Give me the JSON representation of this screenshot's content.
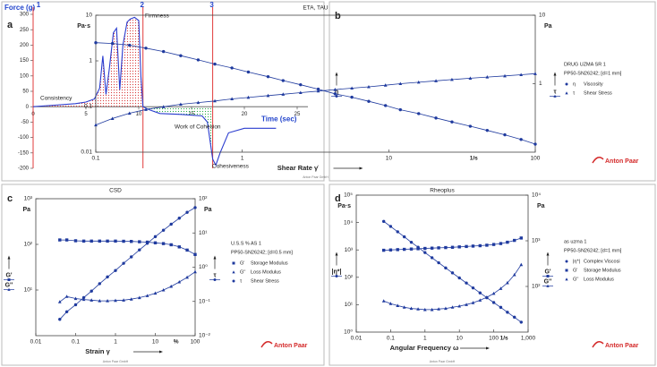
{
  "chart_data": [
    {
      "type": "area",
      "panel": "a",
      "ylabel": "Force (g)",
      "xlabel": "Time (sec)",
      "x": [
        0,
        2,
        4,
        5,
        5.8,
        6.3,
        6.6,
        6.9,
        7.2,
        7.6,
        7.9,
        8.2,
        8.5,
        8.9,
        9.2,
        9.6,
        10,
        10.2,
        10.4,
        11,
        12,
        14,
        16,
        16.5,
        17,
        17.3,
        17.7,
        18.5,
        20,
        23
      ],
      "series": [
        {
          "color": "#2a3ccf",
          "values": [
            0,
            5,
            10,
            15,
            25,
            60,
            165,
            40,
            120,
            240,
            255,
            55,
            200,
            275,
            285,
            290,
            280,
            100,
            0,
            -10,
            -22,
            -25,
            -30,
            -50,
            -170,
            -190,
            -150,
            -85,
            -70,
            -70
          ]
        }
      ],
      "xlim": [
        0,
        25
      ],
      "xticks": [
        0,
        5,
        10,
        15,
        20,
        25
      ],
      "ylim": [
        -200,
        300
      ],
      "yticks": [
        -200,
        -150,
        -100,
        -50,
        0,
        50,
        100,
        150,
        200,
        250,
        300
      ],
      "markers": [
        {
          "x": 0,
          "label": "1"
        },
        {
          "x": 10.4,
          "label": "2"
        },
        {
          "x": 17,
          "label": "3"
        }
      ],
      "marker_color": "#e23b3b",
      "shade_colors": [
        "#d83a3a",
        "#22a844"
      ],
      "annotations": [
        "Firmness",
        "Consistency",
        "Work of Cohesion",
        "Cohesiveness"
      ]
    },
    {
      "type": "line",
      "panel": "b",
      "title": "ETA, TAU",
      "xlabel": "Shear Rate γ̇",
      "x_unit": "1/s",
      "ylabel": "Pa·s",
      "y2label": "Pa",
      "log_x": true,
      "log_y": true,
      "xlim": [
        0.1,
        100
      ],
      "xticks": [
        0.1,
        1,
        10,
        100
      ],
      "ylim": [
        0.01,
        10
      ],
      "yticks": [
        0.01,
        0.1,
        1,
        10
      ],
      "y2lim": [
        0.1,
        10
      ],
      "y2ticks": [
        1,
        10
      ],
      "legend_title": [
        "DRUG UZMA SR 1",
        "PP50-SN26242; [d=1 mm]"
      ],
      "x": [
        0.1,
        0.13,
        0.17,
        0.22,
        0.29,
        0.38,
        0.5,
        0.65,
        0.85,
        1.1,
        1.5,
        1.9,
        2.5,
        3.3,
        4.3,
        5.6,
        7.3,
        9.5,
        12,
        16,
        21,
        27,
        36,
        47,
        62,
        80,
        100
      ],
      "series": [
        {
          "name": "Viscosity",
          "symbol": "η",
          "marker": "circle",
          "color": "#1f3a9e",
          "axis": "y",
          "values": [
            2.5,
            2.4,
            2.2,
            1.9,
            1.6,
            1.3,
            1.05,
            0.85,
            0.7,
            0.57,
            0.45,
            0.37,
            0.3,
            0.24,
            0.19,
            0.16,
            0.13,
            0.105,
            0.085,
            0.07,
            0.056,
            0.046,
            0.037,
            0.03,
            0.024,
            0.019,
            0.015
          ]
        },
        {
          "name": "Shear Stress",
          "symbol": "τ",
          "marker": "triangle",
          "color": "#1f3a9e",
          "axis": "y2",
          "values": [
            0.25,
            0.31,
            0.37,
            0.42,
            0.46,
            0.5,
            0.53,
            0.56,
            0.6,
            0.63,
            0.67,
            0.7,
            0.74,
            0.78,
            0.82,
            0.86,
            0.9,
            0.95,
            1.0,
            1.05,
            1.1,
            1.15,
            1.2,
            1.25,
            1.3,
            1.35,
            1.4
          ]
        }
      ],
      "brand": "Anton Paar",
      "brand_color": "#d42a2a",
      "footer": "Anton Paar GmbH"
    },
    {
      "type": "line",
      "panel": "c",
      "title": "CSD",
      "xlabel": "Strain γ",
      "x_unit": "%",
      "ylabel": "Pa",
      "y2label": "Pa",
      "log_x": true,
      "log_y": true,
      "xlim": [
        0.01,
        100
      ],
      "xticks": [
        0.01,
        0.1,
        1,
        10,
        100
      ],
      "ylim": [
        1,
        1000
      ],
      "yticks": [
        {
          "value": 10,
          "label": "10¹"
        },
        {
          "value": 100,
          "label": "10²"
        },
        {
          "value": 1000,
          "label": "10³"
        }
      ],
      "y2lim": [
        0.01,
        100
      ],
      "y2ticks": [
        {
          "value": 0.01,
          "label": "10⁻²"
        },
        {
          "value": 0.1,
          "label": "10⁻¹"
        },
        {
          "value": 1,
          "label": "10⁰"
        },
        {
          "value": 10,
          "label": "10¹"
        },
        {
          "value": 100,
          "label": "10²"
        }
      ],
      "legend_title": [
        "U.S.S % AS 1",
        "PP50-SN26242; [d=0.5 mm]"
      ],
      "x": [
        0.04,
        0.06,
        0.1,
        0.16,
        0.25,
        0.4,
        0.63,
        1,
        1.6,
        2.5,
        4,
        6.3,
        10,
        16,
        25,
        40,
        63,
        100
      ],
      "series": [
        {
          "name": "Storage Modulus",
          "symbol": "G'",
          "marker": "square",
          "color": "#1f3a9e",
          "axis": "y",
          "values": [
            125,
            125,
            120,
            118,
            118,
            118,
            118,
            118,
            117,
            116,
            114,
            112,
            108,
            104,
            98,
            88,
            75,
            60
          ]
        },
        {
          "name": "Loss Modulus",
          "symbol": "G''",
          "marker": "triangle",
          "color": "#1f3a9e",
          "axis": "y",
          "values": [
            5.5,
            7.2,
            6.5,
            6.2,
            6,
            5.8,
            5.8,
            5.9,
            6,
            6.3,
            6.8,
            7.5,
            8.5,
            10,
            12,
            15,
            19,
            25
          ]
        },
        {
          "name": "Shear Stress",
          "symbol": "τ",
          "marker": "circle",
          "color": "#1f3a9e",
          "axis": "y2",
          "values": [
            0.03,
            0.05,
            0.08,
            0.13,
            0.2,
            0.33,
            0.52,
            0.8,
            1.3,
            2,
            3.2,
            5,
            7.8,
            12,
            18,
            27,
            40,
            55
          ]
        }
      ],
      "brand": "Anton Paar",
      "brand_color": "#d42a2a",
      "footer": "Anton Paar GmbH"
    },
    {
      "type": "line",
      "panel": "d",
      "title": "Rheoplus",
      "xlabel": "Angular Frequency ω",
      "x_unit": "1/s",
      "ylabel": "Pa·s",
      "y2label": "Pa",
      "log_x": true,
      "log_y": true,
      "xlim": [
        0.01,
        1000
      ],
      "xticks": [
        0.01,
        0.1,
        1,
        10,
        100,
        {
          "value": 1000,
          "label": "1,000"
        }
      ],
      "ylim": [
        1,
        100000
      ],
      "yticks": [
        {
          "value": 1,
          "label": "10⁰"
        },
        {
          "value": 10,
          "label": "10¹"
        },
        {
          "value": 100,
          "label": "10²"
        },
        {
          "value": 1000,
          "label": "10³"
        },
        {
          "value": 10000,
          "label": "10⁴"
        },
        {
          "value": 100000,
          "label": "10⁵"
        }
      ],
      "y2lim": [
        10,
        10000
      ],
      "y2ticks": [
        {
          "value": 100,
          "label": "10²"
        },
        {
          "value": 1000,
          "label": "10³"
        },
        {
          "value": 10000,
          "label": "10⁴"
        }
      ],
      "legend_title": [
        "as uzma 1",
        "PP50-SN26242; [d=1 mm]"
      ],
      "x": [
        0.063,
        0.1,
        0.16,
        0.25,
        0.4,
        0.63,
        1,
        1.6,
        2.5,
        4,
        6.3,
        10,
        16,
        25,
        40,
        63,
        100,
        160,
        250,
        400,
        630
      ],
      "series": [
        {
          "name": "Complex Viscosi",
          "symbol": "|η*|",
          "marker": "circle",
          "color": "#1f3a9e",
          "axis": "y",
          "values": [
            11000,
            7200,
            4600,
            3000,
            1900,
            1250,
            800,
            520,
            340,
            220,
            145,
            95,
            62,
            41,
            27,
            18,
            12,
            8,
            5.3,
            3.5,
            2.3
          ]
        },
        {
          "name": "Storage Modulus",
          "symbol": "G'",
          "marker": "square",
          "color": "#1f3a9e",
          "axis": "y2",
          "values": [
            620,
            630,
            640,
            650,
            660,
            670,
            680,
            690,
            700,
            710,
            720,
            735,
            750,
            765,
            780,
            800,
            830,
            870,
            930,
            1020,
            1150
          ]
        },
        {
          "name": "Loss Modulus",
          "symbol": "G''",
          "marker": "triangle",
          "color": "#1f3a9e",
          "axis": "y2",
          "values": [
            48,
            42,
            38,
            35,
            33,
            32,
            31,
            31,
            32,
            33,
            35,
            37,
            40,
            44,
            50,
            58,
            70,
            90,
            120,
            180,
            300
          ]
        }
      ],
      "brand": "Anton Paar",
      "brand_color": "#d42a2a",
      "footer": "Anton Paar GmbH"
    }
  ]
}
